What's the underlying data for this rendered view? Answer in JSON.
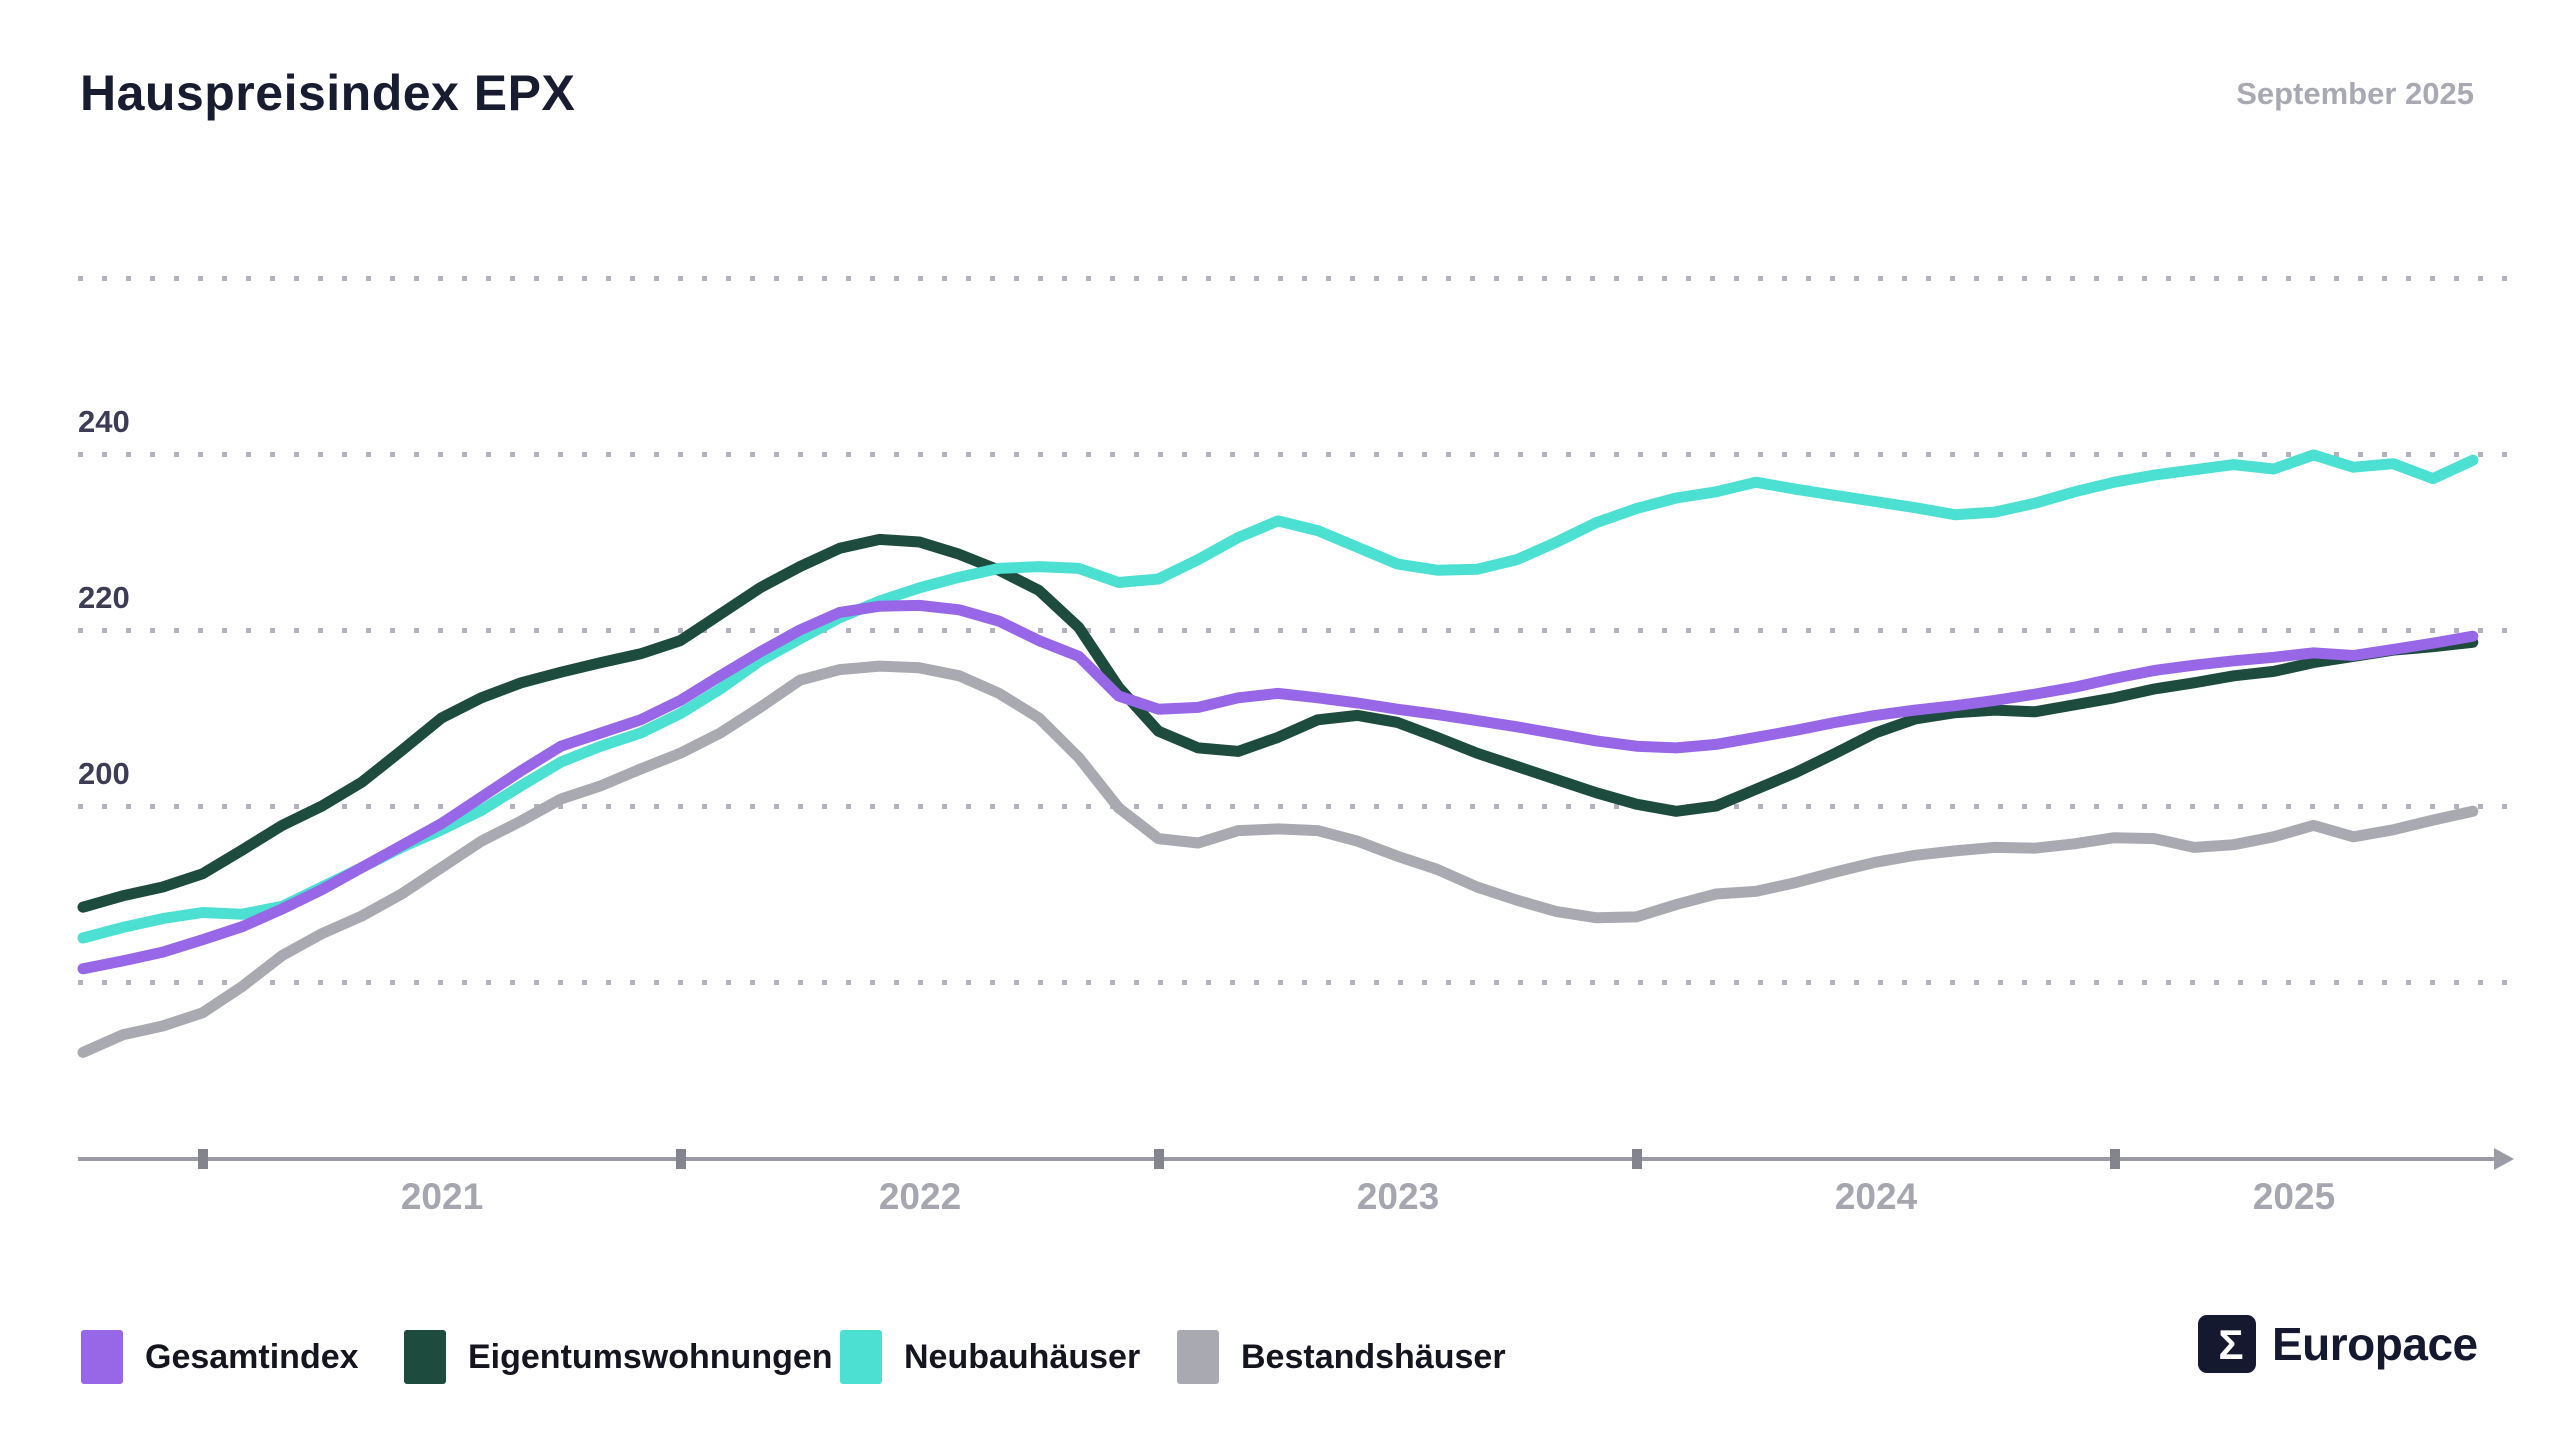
{
  "header": {
    "title": "Hauspreisindex EPX",
    "date_label": "September 2025"
  },
  "chart_data": {
    "type": "line",
    "title": "Hauspreisindex EPX",
    "subtitle": "September 2025",
    "xlabel": "",
    "ylabel": "",
    "x_tick_labels": [
      "2021",
      "2022",
      "2023",
      "2024",
      "2025"
    ],
    "y_tick_labels_shown": [
      "240",
      "220",
      "200"
    ],
    "gridline_values": [
      260,
      240,
      220,
      200,
      180
    ],
    "ylim": [
      160,
      262
    ],
    "grid": "dotted horizontal lines",
    "legend_position": "bottom-left",
    "x": [
      "2020-09",
      "2020-10",
      "2020-11",
      "2020-12",
      "2021-01",
      "2021-02",
      "2021-03",
      "2021-04",
      "2021-05",
      "2021-06",
      "2021-07",
      "2021-08",
      "2021-09",
      "2021-10",
      "2021-11",
      "2021-12",
      "2022-01",
      "2022-02",
      "2022-03",
      "2022-04",
      "2022-05",
      "2022-06",
      "2022-07",
      "2022-08",
      "2022-09",
      "2022-10",
      "2022-11",
      "2022-12",
      "2023-01",
      "2023-02",
      "2023-03",
      "2023-04",
      "2023-05",
      "2023-06",
      "2023-07",
      "2023-08",
      "2023-09",
      "2023-10",
      "2023-11",
      "2023-12",
      "2024-01",
      "2024-02",
      "2024-03",
      "2024-04",
      "2024-05",
      "2024-06",
      "2024-07",
      "2024-08",
      "2024-09",
      "2024-10",
      "2024-11",
      "2024-12",
      "2025-01",
      "2025-02",
      "2025-03",
      "2025-04",
      "2025-05",
      "2025-06",
      "2025-07",
      "2025-08",
      "2025-09"
    ],
    "series": [
      {
        "id": "gesamtindex",
        "name": "Gesamtindex",
        "color": "#9767e8",
        "values": [
          181.5,
          182.4,
          183.4,
          184.8,
          186.3,
          188.3,
          190.5,
          193.0,
          195.5,
          198.0,
          201.0,
          204.0,
          206.8,
          208.3,
          209.8,
          212.0,
          214.8,
          217.5,
          220.0,
          222.0,
          222.7,
          222.8,
          222.3,
          221.0,
          218.8,
          217.0,
          212.5,
          211.0,
          211.2,
          212.3,
          212.8,
          212.3,
          211.7,
          211.0,
          210.4,
          209.7,
          209.0,
          208.2,
          207.4,
          206.8,
          206.6,
          207.0,
          207.8,
          208.6,
          209.5,
          210.3,
          210.9,
          211.4,
          212.0,
          212.7,
          213.5,
          214.5,
          215.4,
          216.0,
          216.5,
          216.9,
          217.4,
          217.1,
          217.8,
          218.5,
          219.3
        ]
      },
      {
        "id": "eigentumswohnungen",
        "name": "Eigentumswohnungen",
        "color": "#1d4b3d",
        "values": [
          188.5,
          189.8,
          190.8,
          192.3,
          195.0,
          197.8,
          200.0,
          202.7,
          206.3,
          210.0,
          212.3,
          214.0,
          215.2,
          216.3,
          217.3,
          218.8,
          221.8,
          224.8,
          227.2,
          229.3,
          230.3,
          230.0,
          228.6,
          226.8,
          224.5,
          220.3,
          213.5,
          208.5,
          206.6,
          206.2,
          207.8,
          209.8,
          210.3,
          209.5,
          207.8,
          206.0,
          204.5,
          203.0,
          201.5,
          200.2,
          199.4,
          200.0,
          201.9,
          203.8,
          206.0,
          208.3,
          209.9,
          210.6,
          210.9,
          210.7,
          211.5,
          212.3,
          213.3,
          214.0,
          214.8,
          215.3,
          216.3,
          217.0,
          217.7,
          218.1,
          218.6
        ]
      },
      {
        "id": "neubauhaeuser",
        "name": "Neubauhäuser",
        "color": "#4be0d1",
        "values": [
          185.0,
          186.2,
          187.2,
          187.9,
          187.7,
          188.6,
          190.8,
          193.0,
          195.3,
          197.3,
          199.5,
          202.3,
          205.0,
          206.8,
          208.3,
          210.5,
          213.3,
          216.5,
          219.0,
          221.4,
          223.3,
          224.8,
          226.0,
          227.0,
          227.2,
          227.0,
          225.4,
          225.8,
          228.0,
          230.5,
          232.4,
          231.3,
          229.4,
          227.5,
          226.8,
          226.9,
          228.0,
          230.0,
          232.2,
          233.8,
          235.0,
          235.7,
          236.8,
          236.0,
          235.3,
          234.6,
          233.9,
          233.1,
          233.4,
          234.4,
          235.7,
          236.8,
          237.6,
          238.2,
          238.8,
          238.3,
          239.9,
          238.5,
          238.9,
          237.2,
          239.3
        ]
      },
      {
        "id": "bestandshaeuser",
        "name": "Bestandshäuser",
        "color": "#a9a9b2",
        "values": [
          172.0,
          174.0,
          175.0,
          176.5,
          179.5,
          183.0,
          185.5,
          187.5,
          190.0,
          193.0,
          196.0,
          198.3,
          200.8,
          202.3,
          204.2,
          206.0,
          208.3,
          211.2,
          214.3,
          215.5,
          215.9,
          215.7,
          214.8,
          212.8,
          210.0,
          205.5,
          199.8,
          196.3,
          195.8,
          197.2,
          197.4,
          197.2,
          196.0,
          194.3,
          192.8,
          190.8,
          189.3,
          188.0,
          187.3,
          187.4,
          188.8,
          190.0,
          190.3,
          191.3,
          192.5,
          193.6,
          194.4,
          194.9,
          195.3,
          195.2,
          195.7,
          196.4,
          196.3,
          195.3,
          195.6,
          196.5,
          197.8,
          196.5,
          197.3,
          198.4,
          199.4
        ]
      }
    ]
  },
  "y_axis_labels": [
    "240",
    "220",
    "200"
  ],
  "footer": {
    "brand": "Europace",
    "logo_glyph": "sigma-icon"
  }
}
